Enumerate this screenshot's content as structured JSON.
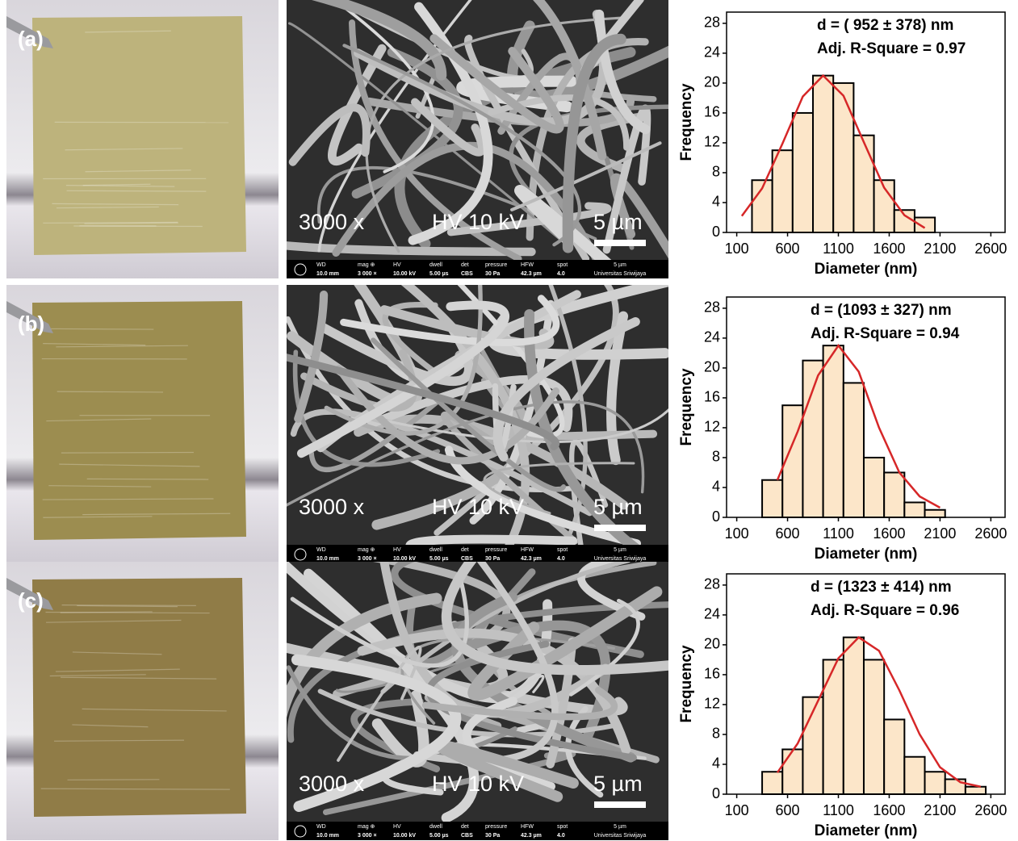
{
  "panels": [
    {
      "label": "(a)",
      "sem": {
        "overlay": [
          "3000 x",
          "HV 10 kV",
          "5 µm"
        ],
        "bar": [
          "WD",
          "10.0 mm",
          "mag ⊕",
          "3 000 ×",
          "HV",
          "10.00 kV",
          "dwell",
          "5.00 µs",
          "det",
          "CBS",
          "pressure",
          "30 Pa",
          "HFW",
          "42.3 µm",
          "spot",
          "4.0",
          "5 µm",
          "Universitas Sriwijaya"
        ]
      }
    },
    {
      "label": "(b)",
      "sem": {
        "overlay": [
          "3000 x",
          "HV 10 kV",
          "5 µm"
        ],
        "bar": [
          "WD",
          "10.0 mm",
          "mag ⊕",
          "3 000 ×",
          "HV",
          "10.00 kV",
          "dwell",
          "5.00 µs",
          "det",
          "CBS",
          "pressure",
          "30 Pa",
          "HFW",
          "42.3 µm",
          "spot",
          "4.0",
          "5 µm",
          "Universitas Sriwijaya"
        ]
      }
    },
    {
      "label": "(c)",
      "sem": {
        "overlay": [
          "3000 x",
          "HV 10 kV",
          "5 µm"
        ],
        "bar": [
          "WD",
          "10.0 mm",
          "mag ⊕",
          "3 000 ×",
          "HV",
          "10.00 kV",
          "dwell",
          "5.00 µs",
          "det",
          "CBS",
          "pressure",
          "30 Pa",
          "HFW",
          "42.3 µm",
          "spot",
          "4.0",
          "5 µm",
          "Universitas Sriwijaya"
        ]
      }
    }
  ],
  "chart_data": [
    {
      "type": "histogram",
      "annotations": [
        "d = ( 952 ± 378) nm",
        "Adj. R-Square = 0.97"
      ],
      "xlabel": "Diameter (nm)",
      "ylabel": "Frequency",
      "bins": [
        250,
        450,
        650,
        850,
        1050,
        1250,
        1450,
        1650,
        1850,
        2050
      ],
      "values": [
        7,
        11,
        16,
        21,
        20,
        13,
        7,
        3,
        2
      ],
      "color": "#fce6c9",
      "fit": {
        "x": [
          150,
          350,
          550,
          750,
          950,
          1150,
          1350,
          1550,
          1750,
          1950
        ],
        "values": [
          2.2,
          5.9,
          11.9,
          18.2,
          21.0,
          18.3,
          12.1,
          6.0,
          2.3,
          0.6
        ],
        "color": "#d62728"
      },
      "xlim": [
        0,
        2740
      ],
      "ylim": [
        0,
        29.5
      ],
      "xticks": [
        100,
        600,
        1100,
        1600,
        2100,
        2600
      ],
      "yticks": [
        0,
        4,
        8,
        12,
        16,
        20,
        24,
        28
      ]
    },
    {
      "type": "histogram",
      "annotations": [
        "d = (1093 ± 327) nm",
        "Adj. R-Square = 0.94"
      ],
      "xlabel": "Diameter (nm)",
      "ylabel": "Frequency",
      "bins": [
        350,
        550,
        750,
        950,
        1150,
        1350,
        1550,
        1750,
        1950,
        2150
      ],
      "values": [
        5,
        15,
        21,
        23,
        18,
        8,
        6,
        2,
        1
      ],
      "color": "#fce6c9",
      "fit": {
        "x": [
          500,
          700,
          900,
          1100,
          1300,
          1500,
          1700,
          1900,
          2100
        ],
        "values": [
          5,
          11.5,
          19,
          23,
          19.5,
          12,
          6,
          2.8,
          1.3
        ],
        "color": "#d62728"
      },
      "xlim": [
        0,
        2740
      ],
      "ylim": [
        0,
        29.5
      ],
      "xticks": [
        100,
        600,
        1100,
        1600,
        2100,
        2600
      ],
      "yticks": [
        0,
        4,
        8,
        12,
        16,
        20,
        24,
        28
      ]
    },
    {
      "type": "histogram",
      "annotations": [
        "d = (1323 ± 414) nm",
        "Adj. R-Square = 0.96"
      ],
      "xlabel": "Diameter (nm)",
      "ylabel": "Frequency",
      "bins": [
        350,
        550,
        750,
        950,
        1150,
        1350,
        1550,
        1750,
        1950,
        2150,
        2350,
        2550
      ],
      "values": [
        3,
        6,
        13,
        18,
        21,
        18,
        10,
        5,
        3,
        2,
        1
      ],
      "color": "#fce6c9",
      "fit": {
        "x": [
          500,
          700,
          900,
          1100,
          1300,
          1500,
          1700,
          1900,
          2100,
          2300,
          2500
        ],
        "values": [
          2.9,
          6.8,
          12.5,
          18.2,
          21,
          19.2,
          13.9,
          8.0,
          3.6,
          1.6,
          1.0
        ],
        "color": "#d62728"
      },
      "xlim": [
        0,
        2740
      ],
      "ylim": [
        0,
        29.5
      ],
      "xticks": [
        100,
        600,
        1100,
        1600,
        2100,
        2600
      ],
      "yticks": [
        0,
        4,
        8,
        12,
        16,
        20,
        24,
        28
      ]
    }
  ]
}
